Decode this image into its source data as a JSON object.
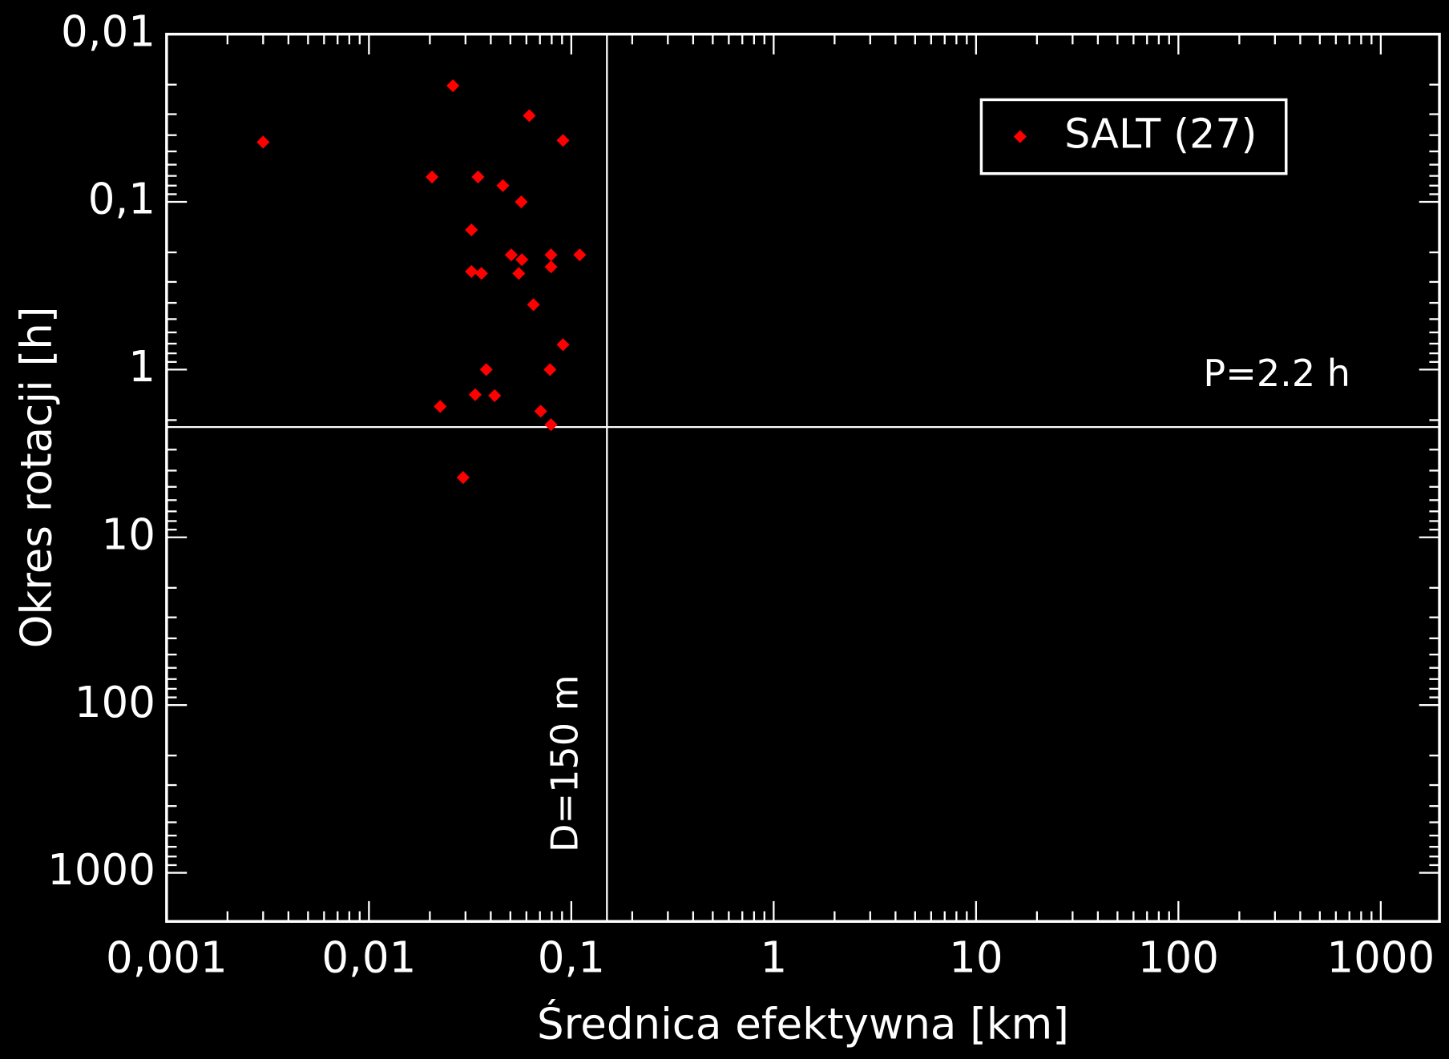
{
  "chart_data": {
    "type": "scatter",
    "xlabel": "Średnica efektywna [km]",
    "ylabel": "Okres rotacji [h]",
    "xscale": "log",
    "yscale": "log",
    "yinverted": true,
    "xlim": [
      0.001,
      1950
    ],
    "ylim": [
      0.01,
      1950
    ],
    "xticks": [
      {
        "value": 0.001,
        "label": "0,001"
      },
      {
        "value": 0.01,
        "label": "0,01"
      },
      {
        "value": 0.1,
        "label": "0,1"
      },
      1,
      10,
      100,
      1000
    ],
    "yticks": [
      {
        "value": 0.01,
        "label": "0,01"
      },
      {
        "value": 0.1,
        "label": "0,1"
      },
      1,
      10,
      100,
      1000
    ],
    "legend": "upper right",
    "series": [
      {
        "name": "SALT (27)",
        "color": "#ff0000",
        "x": [
          0.003,
          0.026,
          0.062,
          0.091,
          0.0205,
          0.0346,
          0.0459,
          0.0566,
          0.0321,
          0.0505,
          0.057,
          0.0794,
          0.11,
          0.0794,
          0.0321,
          0.036,
          0.055,
          0.065,
          0.091,
          0.038,
          0.0785,
          0.0225,
          0.0335,
          0.0418,
          0.0706,
          0.0794,
          0.0292
        ],
        "values": [
          0.044,
          0.0203,
          0.0306,
          0.043,
          0.071,
          0.071,
          0.08,
          0.1,
          0.147,
          0.207,
          0.221,
          0.207,
          0.207,
          0.244,
          0.26,
          0.267,
          0.267,
          0.41,
          0.71,
          1.0,
          1.0,
          1.66,
          1.41,
          1.43,
          1.77,
          2.13,
          4.4
        ]
      }
    ],
    "hlines": [
      {
        "value": 2.2,
        "label": "P=2.2 h"
      }
    ],
    "vlines": [
      {
        "value": 0.15,
        "label": "D=150 m"
      }
    ]
  }
}
